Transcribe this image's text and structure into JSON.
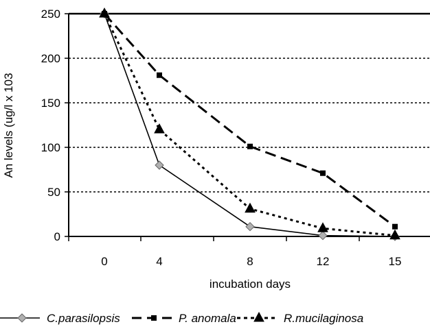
{
  "chart_data": {
    "type": "line",
    "xlabel": "incubation days",
    "ylabel": "An levels (ug/l x 103",
    "categories": [
      "0",
      "4",
      "8",
      "12",
      "15"
    ],
    "ylim": [
      0,
      250
    ],
    "yticks": [
      "0",
      "50",
      "100",
      "150",
      "200",
      "250"
    ],
    "grid": "horizontal dotted",
    "legend_position": "bottom",
    "series": [
      {
        "name": "C.parasilopsis",
        "values": [
          250,
          80,
          11,
          1,
          0
        ],
        "color": "#000000",
        "marker": "diamond",
        "marker_color": "#b0b0b0",
        "line_style": "solid"
      },
      {
        "name": "P. anomala",
        "values": [
          250,
          181,
          101,
          71,
          11
        ],
        "color": "#000000",
        "marker": "square",
        "marker_color": "#000000",
        "line_style": "dashed"
      },
      {
        "name": "R.mucilaginosa",
        "values": [
          250,
          120,
          31,
          9,
          1
        ],
        "color": "#000000",
        "marker": "triangle",
        "marker_color": "#000000",
        "line_style": "dotted"
      }
    ]
  }
}
